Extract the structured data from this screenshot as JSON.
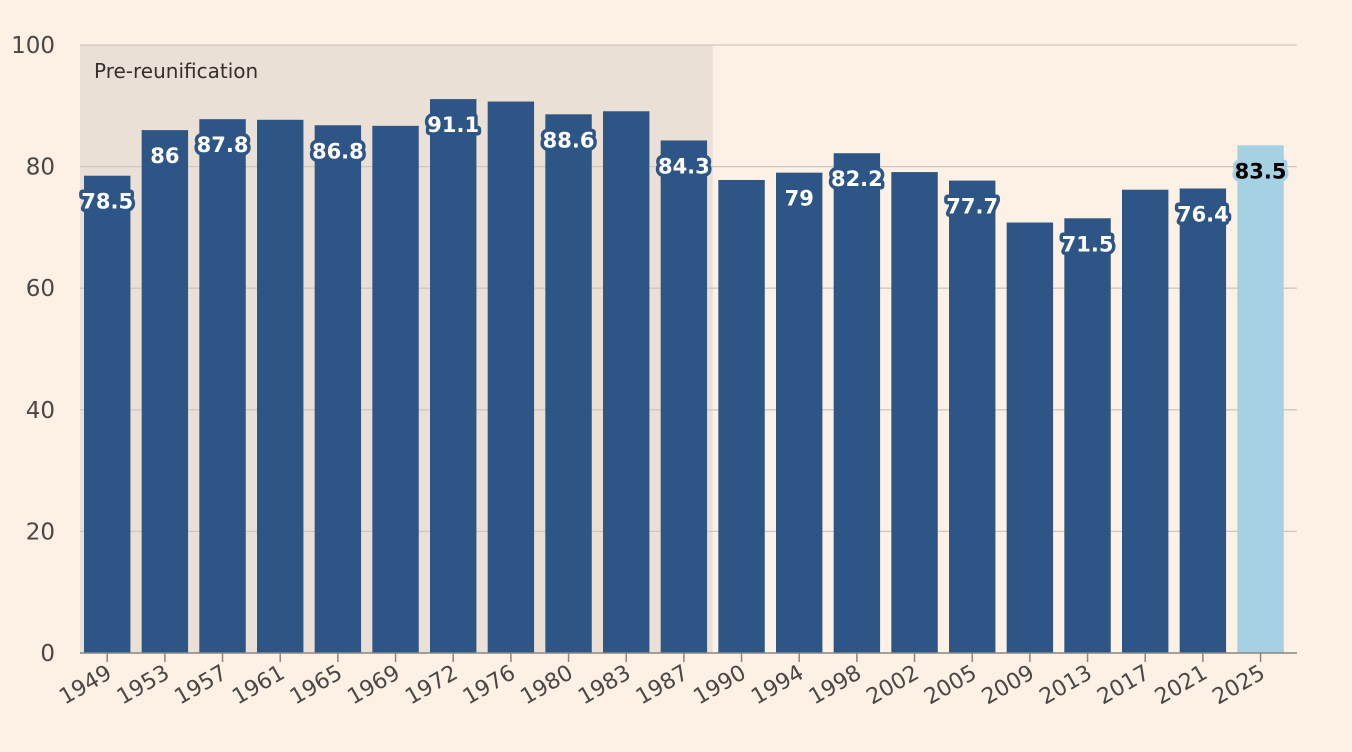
{
  "chart_data": {
    "type": "bar",
    "title": "",
    "xlabel": "",
    "ylabel": "",
    "ylim": [
      0,
      100
    ],
    "yticks": [
      0,
      20,
      40,
      60,
      80,
      100
    ],
    "grid": true,
    "categories": [
      "1949",
      "1953",
      "1957",
      "1961",
      "1965",
      "1969",
      "1972",
      "1976",
      "1980",
      "1983",
      "1987",
      "1990",
      "1994",
      "1998",
      "2002",
      "2005",
      "2009",
      "2013",
      "2017",
      "2021",
      "2025"
    ],
    "values": [
      78.5,
      86,
      87.8,
      87.7,
      86.8,
      86.7,
      91.1,
      90.7,
      88.6,
      89.1,
      84.3,
      77.8,
      79,
      82.2,
      79.1,
      77.7,
      70.8,
      71.5,
      76.2,
      76.4,
      83.5
    ],
    "labeled": [
      "1949",
      "1953",
      "1957",
      "1965",
      "1972",
      "1980",
      "1987",
      "1994",
      "1998",
      "2005",
      "2013",
      "2021",
      "2025"
    ],
    "shaded_region": {
      "label": "Pre-reunification",
      "from": "1949",
      "to": "1987"
    },
    "colors": {
      "bar": "#2d5586",
      "highlight": "#a5d1e3",
      "region": "#ebe0d6",
      "grid": "#cfc6bd",
      "axis": "#8a8581"
    },
    "highlight": "2025"
  }
}
